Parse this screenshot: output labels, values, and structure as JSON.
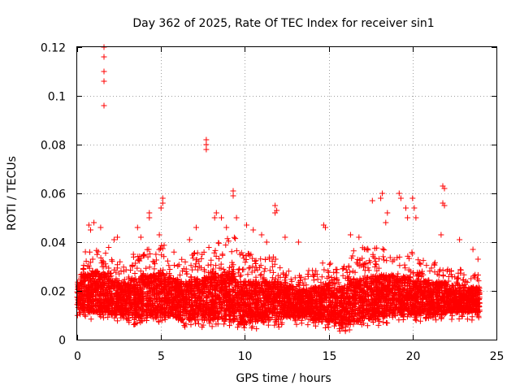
{
  "chart_data": {
    "type": "scatter",
    "title": "Day 362 of 2025, Rate Of TEC Index for receiver sin1",
    "xlabel": "GPS time / hours",
    "ylabel": "ROTI / TECUs",
    "xlim": [
      0,
      25
    ],
    "ylim": [
      0,
      0.12
    ],
    "x_ticks": [
      0,
      5,
      10,
      15,
      20,
      25
    ],
    "y_ticks": [
      0,
      0.02,
      0.04,
      0.06,
      0.08,
      0.1,
      0.12
    ],
    "x_tick_labels": [
      "0",
      "5",
      "10",
      "15",
      "20",
      "25"
    ],
    "y_tick_labels": [
      "0",
      "0.02",
      "0.04",
      "0.06",
      "0.08",
      "0.1",
      "0.12"
    ],
    "grid": true,
    "marker": "+",
    "color": "#ff0000",
    "series": [
      {
        "points": [
          [
            1.6,
            0.12
          ],
          [
            1.6,
            0.116
          ],
          [
            1.6,
            0.11
          ],
          [
            1.6,
            0.106
          ],
          [
            1.6,
            0.096
          ],
          [
            7.7,
            0.082
          ],
          [
            7.7,
            0.08
          ],
          [
            7.7,
            0.078
          ],
          [
            9.3,
            0.061
          ],
          [
            9.3,
            0.059
          ],
          [
            5.1,
            0.058
          ],
          [
            5.1,
            0.056
          ],
          [
            5.0,
            0.054
          ],
          [
            4.3,
            0.052
          ],
          [
            4.3,
            0.05
          ],
          [
            11.8,
            0.055
          ],
          [
            11.8,
            0.052
          ],
          [
            11.9,
            0.053
          ],
          [
            21.8,
            0.063
          ],
          [
            21.9,
            0.062
          ],
          [
            21.8,
            0.056
          ],
          [
            21.9,
            0.055
          ],
          [
            21.7,
            0.043
          ],
          [
            18.2,
            0.06
          ],
          [
            18.1,
            0.058
          ],
          [
            17.6,
            0.057
          ],
          [
            18.5,
            0.052
          ],
          [
            18.4,
            0.048
          ],
          [
            19.2,
            0.06
          ],
          [
            19.3,
            0.058
          ],
          [
            19.6,
            0.054
          ],
          [
            19.7,
            0.05
          ],
          [
            20.0,
            0.058
          ],
          [
            20.1,
            0.054
          ],
          [
            20.2,
            0.05
          ],
          [
            14.7,
            0.047
          ],
          [
            14.8,
            0.046
          ],
          [
            1.0,
            0.048
          ],
          [
            0.7,
            0.047
          ],
          [
            0.8,
            0.045
          ],
          [
            1.4,
            0.046
          ],
          [
            2.4,
            0.042
          ],
          [
            2.2,
            0.041
          ],
          [
            3.6,
            0.046
          ],
          [
            3.8,
            0.042
          ],
          [
            4.9,
            0.043
          ],
          [
            6.7,
            0.041
          ],
          [
            7.1,
            0.046
          ],
          [
            8.2,
            0.05
          ],
          [
            8.3,
            0.052
          ],
          [
            8.6,
            0.05
          ],
          [
            8.9,
            0.046
          ],
          [
            9.5,
            0.05
          ],
          [
            10.1,
            0.047
          ],
          [
            10.5,
            0.045
          ],
          [
            11.0,
            0.043
          ],
          [
            11.3,
            0.04
          ],
          [
            12.4,
            0.042
          ],
          [
            13.2,
            0.04
          ],
          [
            16.3,
            0.043
          ],
          [
            16.8,
            0.042
          ],
          [
            22.8,
            0.041
          ],
          [
            23.6,
            0.037
          ],
          [
            23.9,
            0.033
          ]
        ]
      }
    ],
    "bands": [
      [
        0.0,
        0.2,
        0.008,
        0.03
      ],
      [
        0.2,
        0.8,
        0.008,
        0.037
      ],
      [
        0.8,
        1.3,
        0.008,
        0.04
      ],
      [
        1.3,
        2.0,
        0.008,
        0.038
      ],
      [
        2.0,
        2.7,
        0.007,
        0.033
      ],
      [
        2.7,
        3.2,
        0.007,
        0.03
      ],
      [
        3.2,
        3.8,
        0.006,
        0.035
      ],
      [
        3.8,
        4.6,
        0.006,
        0.038
      ],
      [
        4.6,
        5.2,
        0.006,
        0.04
      ],
      [
        5.2,
        6.0,
        0.006,
        0.036
      ],
      [
        6.0,
        6.8,
        0.005,
        0.034
      ],
      [
        6.8,
        7.5,
        0.005,
        0.036
      ],
      [
        7.5,
        8.0,
        0.005,
        0.038
      ],
      [
        8.0,
        8.7,
        0.005,
        0.04
      ],
      [
        8.7,
        9.6,
        0.004,
        0.042
      ],
      [
        9.6,
        10.3,
        0.003,
        0.036
      ],
      [
        10.3,
        11.2,
        0.004,
        0.035
      ],
      [
        11.2,
        12.2,
        0.005,
        0.034
      ],
      [
        12.2,
        13.0,
        0.006,
        0.03
      ],
      [
        13.0,
        13.8,
        0.006,
        0.027
      ],
      [
        13.8,
        14.6,
        0.005,
        0.03
      ],
      [
        14.6,
        15.4,
        0.004,
        0.034
      ],
      [
        15.4,
        16.2,
        0.003,
        0.031
      ],
      [
        16.2,
        17.0,
        0.004,
        0.037
      ],
      [
        17.0,
        18.0,
        0.005,
        0.038
      ],
      [
        18.0,
        19.0,
        0.006,
        0.038
      ],
      [
        19.0,
        20.0,
        0.007,
        0.036
      ],
      [
        20.0,
        21.0,
        0.007,
        0.033
      ],
      [
        21.0,
        22.0,
        0.007,
        0.032
      ],
      [
        22.0,
        23.0,
        0.008,
        0.029
      ],
      [
        23.0,
        24.0,
        0.008,
        0.027
      ]
    ]
  }
}
